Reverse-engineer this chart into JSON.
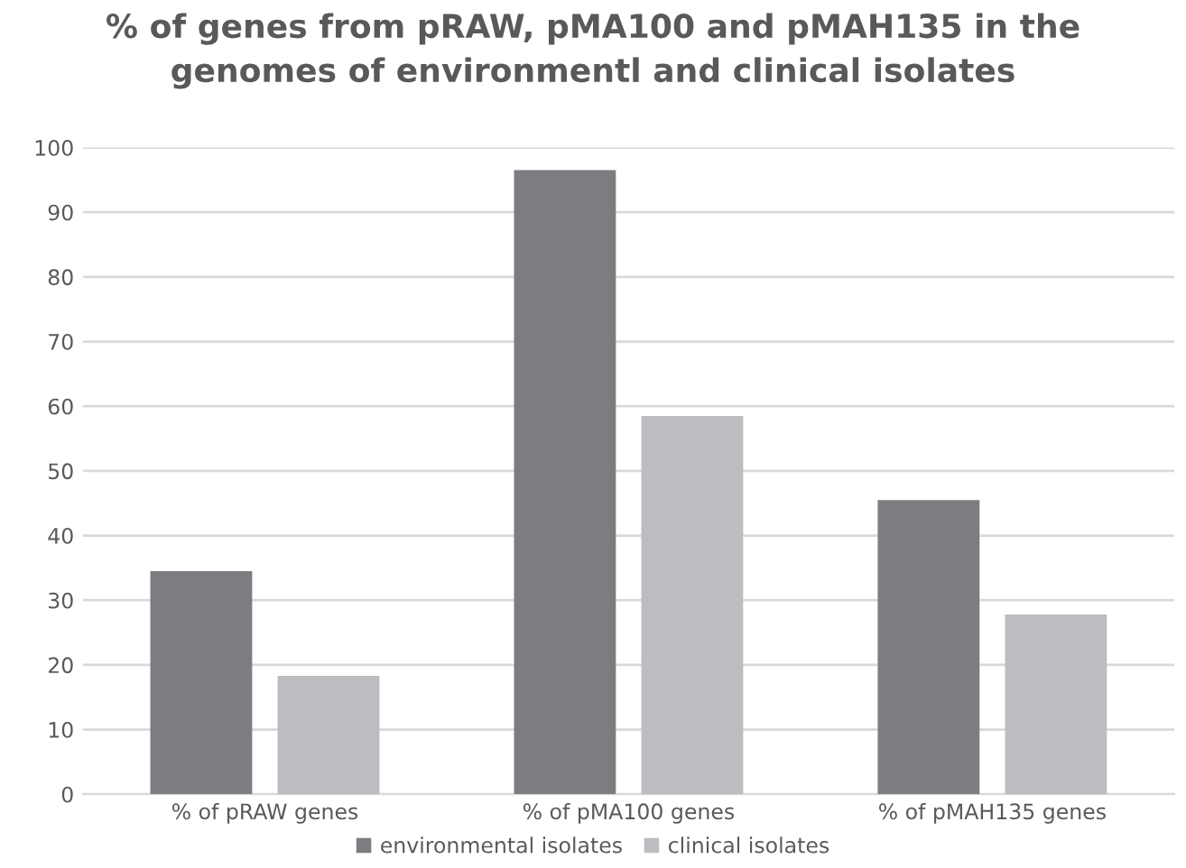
{
  "chart_data": {
    "type": "bar",
    "title": "% of genes from pRAW, pMA100 and pMAH135 in the\ngenomes of environmentl and clinical isolates",
    "categories": [
      "% of pRAW genes",
      "% of pMA100 genes",
      "% of pMAH135 genes"
    ],
    "series": [
      {
        "name": "environmental isolates",
        "color": "#7c7d80",
        "values": [
          34.5,
          96.5,
          45.5
        ]
      },
      {
        "name": "clinical isolates",
        "color": "#bcbdc0",
        "values": [
          18.3,
          58.5,
          27.8
        ]
      }
    ],
    "ylim": [
      0,
      100
    ],
    "yticks": [
      0,
      10,
      20,
      30,
      40,
      50,
      60,
      70,
      80,
      90,
      100
    ],
    "grid": "y",
    "legend": "bottom"
  }
}
